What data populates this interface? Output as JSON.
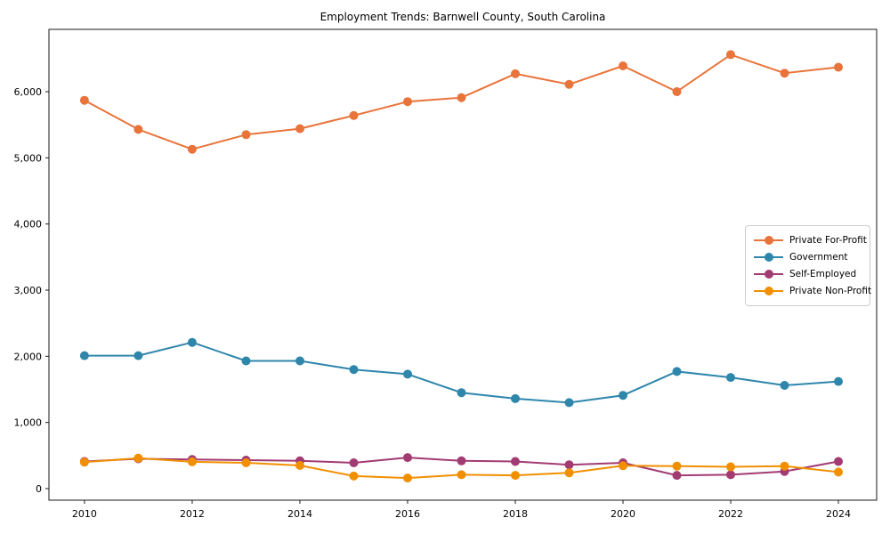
{
  "chart_data": {
    "type": "line",
    "title": "Employment Trends: Barnwell County, South Carolina",
    "xlabel": "",
    "ylabel": "",
    "grid": false,
    "legend_position": "center-right-inside",
    "background_color": "#ffffff",
    "axis_color": "#1a1a1a",
    "legend_border_color": "#cccccc",
    "xlim": [
      2009.34,
      2024.71
    ],
    "ylim": [
      -175,
      6942
    ],
    "x": [
      2010,
      2011,
      2012,
      2013,
      2014,
      2015,
      2016,
      2017,
      2018,
      2019,
      2020,
      2021,
      2022,
      2023,
      2024
    ],
    "x_tick_years": [
      2010,
      2012,
      2014,
      2016,
      2018,
      2020,
      2022,
      2024
    ],
    "x_tick_labels": [
      "2010",
      "2012",
      "2014",
      "2016",
      "2018",
      "2020",
      "2022",
      "2024"
    ],
    "y_ticks": [
      0,
      1000,
      2000,
      3000,
      4000,
      5000,
      6000
    ],
    "y_tick_labels": [
      "0",
      "1,000",
      "2,000",
      "3,000",
      "4,000",
      "5,000",
      "6,000"
    ],
    "series": [
      {
        "name": "Private For-Profit",
        "color": "#E8743B",
        "values": [
          5870,
          5430,
          5130,
          5350,
          5440,
          5640,
          5850,
          5910,
          6270,
          6110,
          6390,
          6000,
          6560,
          6280,
          6370
        ]
      },
      {
        "name": "Government",
        "color": "#2E86AB",
        "values": [
          2010,
          2010,
          2210,
          1930,
          1930,
          1800,
          1730,
          1450,
          1360,
          1300,
          1410,
          1770,
          1680,
          1560,
          1620
        ]
      },
      {
        "name": "Self-Employed",
        "color": "#A23B72",
        "values": [
          410,
          450,
          440,
          430,
          420,
          390,
          470,
          420,
          410,
          360,
          390,
          200,
          210,
          260,
          410
        ]
      },
      {
        "name": "Private Non-Profit",
        "color": "#F18F01",
        "values": [
          400,
          460,
          405,
          390,
          350,
          190,
          160,
          210,
          200,
          240,
          345,
          340,
          330,
          340,
          250
        ]
      }
    ]
  }
}
